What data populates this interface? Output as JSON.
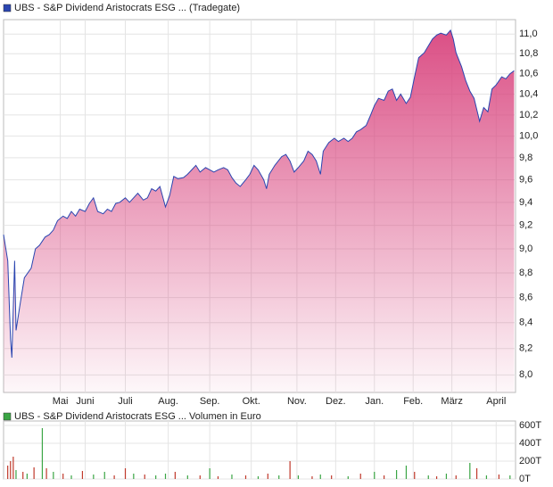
{
  "chart_data": [
    {
      "type": "area",
      "log_scale": true,
      "grid": true,
      "area_color": "#d9467f",
      "xlim": [
        0,
        370
      ],
      "ylim": [
        7.87,
        11.15
      ],
      "xticks": [
        {
          "value": 41,
          "label": "Mai"
        },
        {
          "value": 59,
          "label": "Juni"
        },
        {
          "value": 88,
          "label": "Juli"
        },
        {
          "value": 119,
          "label": "Aug."
        },
        {
          "value": 149,
          "label": "Sep."
        },
        {
          "value": 179,
          "label": "Okt."
        },
        {
          "value": 212,
          "label": "Nov."
        },
        {
          "value": 240,
          "label": "Dez."
        },
        {
          "value": 268,
          "label": "Jan."
        },
        {
          "value": 296,
          "label": "Feb."
        },
        {
          "value": 324,
          "label": "März"
        },
        {
          "value": 356,
          "label": "April"
        }
      ],
      "yticks": [
        {
          "value": 8.0,
          "label": "8,0"
        },
        {
          "value": 8.2,
          "label": "8,2"
        },
        {
          "value": 8.4,
          "label": "8,4"
        },
        {
          "value": 8.6,
          "label": "8,6"
        },
        {
          "value": 8.8,
          "label": "8,8"
        },
        {
          "value": 9.0,
          "label": "9,0"
        },
        {
          "value": 9.2,
          "label": "9,2"
        },
        {
          "value": 9.4,
          "label": "9,4"
        },
        {
          "value": 9.6,
          "label": "9,6"
        },
        {
          "value": 9.8,
          "label": "9,8"
        },
        {
          "value": 10.0,
          "label": "10,0"
        },
        {
          "value": 10.2,
          "label": "10,2"
        },
        {
          "value": 10.4,
          "label": "10,4"
        },
        {
          "value": 10.6,
          "label": "10,6"
        },
        {
          "value": 10.8,
          "label": "10,8"
        },
        {
          "value": 11.0,
          "label": "11,0"
        }
      ],
      "series": [
        {
          "name": "UBS - S&P Dividend Aristocrats ESG ... (Tradegate)",
          "color": "#2a45b0",
          "x": [
            0,
            3,
            5,
            6,
            8,
            9,
            12,
            15,
            20,
            23,
            26,
            30,
            33,
            36,
            39,
            43,
            46,
            49,
            52,
            55,
            59,
            62,
            65,
            68,
            72,
            75,
            78,
            81,
            84,
            88,
            91,
            94,
            97,
            101,
            104,
            107,
            110,
            113,
            117,
            120,
            123,
            126,
            130,
            133,
            136,
            139,
            142,
            146,
            149,
            152,
            155,
            159,
            162,
            165,
            168,
            171,
            175,
            178,
            181,
            184,
            188,
            190,
            192,
            196,
            201,
            204,
            207,
            210,
            213,
            217,
            220,
            223,
            226,
            229,
            231,
            235,
            239,
            242,
            246,
            249,
            252,
            255,
            258,
            262,
            265,
            268,
            271,
            275,
            278,
            281,
            284,
            287,
            291,
            294,
            297,
            300,
            304,
            307,
            310,
            313,
            316,
            320,
            323,
            325,
            327,
            331,
            334,
            337,
            340,
            344,
            347,
            350,
            353,
            356,
            360,
            363,
            366,
            369
          ],
          "values": [
            9.12,
            8.9,
            8.27,
            8.13,
            8.9,
            8.34,
            8.55,
            8.76,
            8.84,
            9.0,
            9.03,
            9.1,
            9.12,
            9.16,
            9.24,
            9.28,
            9.26,
            9.32,
            9.28,
            9.34,
            9.32,
            9.39,
            9.44,
            9.32,
            9.3,
            9.34,
            9.32,
            9.39,
            9.4,
            9.44,
            9.4,
            9.44,
            9.48,
            9.42,
            9.44,
            9.52,
            9.5,
            9.54,
            9.36,
            9.46,
            9.63,
            9.61,
            9.62,
            9.65,
            9.69,
            9.73,
            9.67,
            9.71,
            9.69,
            9.67,
            9.69,
            9.71,
            9.69,
            9.62,
            9.57,
            9.54,
            9.6,
            9.65,
            9.73,
            9.69,
            9.6,
            9.52,
            9.65,
            9.73,
            9.81,
            9.83,
            9.77,
            9.67,
            9.71,
            9.77,
            9.86,
            9.83,
            9.77,
            9.65,
            9.86,
            9.94,
            9.98,
            9.95,
            9.98,
            9.95,
            9.98,
            10.04,
            10.06,
            10.1,
            10.19,
            10.29,
            10.36,
            10.34,
            10.43,
            10.45,
            10.34,
            10.4,
            10.31,
            10.37,
            10.57,
            10.76,
            10.81,
            10.88,
            10.95,
            10.99,
            11.01,
            10.99,
            11.04,
            10.95,
            10.81,
            10.67,
            10.53,
            10.43,
            10.36,
            10.14,
            10.27,
            10.23,
            10.45,
            10.49,
            10.57,
            10.55,
            10.6,
            10.63
          ]
        }
      ]
    },
    {
      "type": "bar",
      "grid": true,
      "xlim": [
        0,
        370
      ],
      "ylim": [
        0,
        650
      ],
      "yticks": [
        {
          "value": 0,
          "label": "0T"
        },
        {
          "value": 200,
          "label": "200T"
        },
        {
          "value": 400,
          "label": "400T"
        },
        {
          "value": 600,
          "label": "600T"
        }
      ],
      "series": [
        {
          "name": "UBS - S&P Dividend Aristocrats ESG ... Volumen in Euro",
          "color": "#3aa544",
          "x": [
            3,
            5,
            7,
            9,
            14,
            17,
            22,
            28,
            31,
            36,
            43,
            49,
            57,
            65,
            73,
            80,
            88,
            94,
            102,
            110,
            117,
            124,
            133,
            142,
            149,
            155,
            165,
            175,
            184,
            191,
            199,
            207,
            213,
            223,
            229,
            237,
            249,
            258,
            268,
            275,
            284,
            291,
            297,
            307,
            313,
            320,
            327,
            337,
            342,
            349,
            358,
            366
          ],
          "values": [
            150,
            200,
            250,
            100,
            80,
            60,
            130,
            570,
            120,
            80,
            60,
            40,
            90,
            50,
            80,
            40,
            120,
            60,
            50,
            40,
            60,
            80,
            40,
            40,
            120,
            30,
            50,
            40,
            30,
            60,
            40,
            200,
            40,
            30,
            50,
            40,
            30,
            60,
            80,
            40,
            100,
            150,
            80,
            40,
            30,
            60,
            40,
            180,
            120,
            40,
            50,
            40
          ],
          "bar_colors": [
            "#c0392b",
            "#c0392b",
            "#c0392b",
            "#3aa544",
            "#c0392b",
            "#3aa544",
            "#c0392b",
            "#3aa544",
            "#c0392b",
            "#3aa544",
            "#c0392b",
            "#3aa544",
            "#c0392b",
            "#3aa544",
            "#3aa544",
            "#c0392b",
            "#c0392b",
            "#3aa544",
            "#c0392b",
            "#3aa544",
            "#3aa544",
            "#c0392b",
            "#3aa544",
            "#c0392b",
            "#3aa544",
            "#c0392b",
            "#3aa544",
            "#c0392b",
            "#3aa544",
            "#c0392b",
            "#3aa544",
            "#c0392b",
            "#3aa544",
            "#c0392b",
            "#3aa544",
            "#c0392b",
            "#3aa544",
            "#c0392b",
            "#3aa544",
            "#c0392b",
            "#3aa544",
            "#3aa544",
            "#c0392b",
            "#3aa544",
            "#c0392b",
            "#3aa544",
            "#c0392b",
            "#3aa544",
            "#c0392b",
            "#3aa544",
            "#c0392b",
            "#3aa544"
          ]
        }
      ]
    }
  ]
}
